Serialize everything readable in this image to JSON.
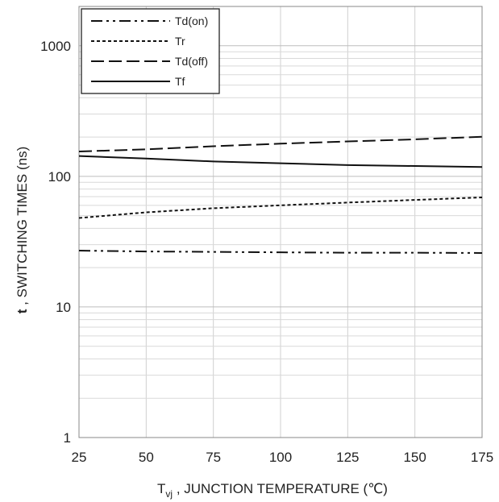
{
  "chart_data": {
    "type": "line",
    "xlabel": "T",
    "xlabel_sub": "vj",
    "xlabel_rest": " , JUNCTION TEMPERATURE (℃)",
    "ylabel_bold": "t",
    "ylabel_rest": " , SWITCHING TIMES (ns)",
    "xlim": [
      25,
      175
    ],
    "ylim": [
      1,
      2000
    ],
    "yscale": "log",
    "grid": true,
    "legend_position": "top-left",
    "x_ticks": [
      25,
      50,
      75,
      100,
      125,
      150,
      175
    ],
    "y_ticks": [
      1,
      10,
      100,
      1000
    ],
    "series": [
      {
        "name": "Td(on)",
        "dash": "dashdotdot",
        "x": [
          25,
          50,
          75,
          100,
          125,
          150,
          175
        ],
        "y": [
          27,
          26.6,
          26.4,
          26.2,
          26.0,
          26.0,
          25.9
        ]
      },
      {
        "name": "Tr",
        "dash": "dotted",
        "x": [
          25,
          50,
          75,
          100,
          125,
          150,
          175
        ],
        "y": [
          48,
          53,
          57,
          60,
          63,
          66,
          69
        ]
      },
      {
        "name": "Td(off)",
        "dash": "dashed",
        "x": [
          25,
          50,
          75,
          100,
          125,
          150,
          175
        ],
        "y": [
          155,
          161,
          170,
          178,
          185,
          192,
          201
        ]
      },
      {
        "name": "Tf",
        "dash": "solid",
        "x": [
          25,
          50,
          75,
          100,
          125,
          150,
          175
        ],
        "y": [
          143,
          137,
          130,
          126,
          122,
          120,
          118
        ]
      }
    ]
  }
}
